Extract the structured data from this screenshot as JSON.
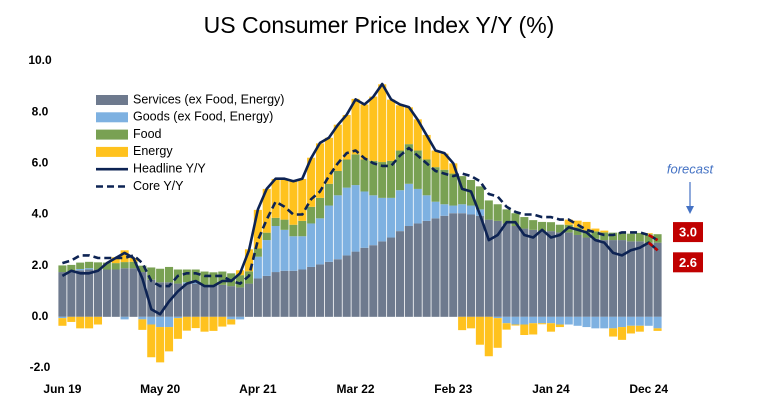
{
  "chart_data": {
    "type": "bar",
    "stacked": true,
    "title": "US Consumer Price Index Y/Y (%)",
    "annotation": "forecast",
    "categories": [
      "Jun 19",
      null,
      null,
      null,
      null,
      null,
      null,
      null,
      null,
      null,
      null,
      "May 20",
      null,
      null,
      null,
      null,
      null,
      null,
      null,
      null,
      null,
      null,
      "Apr 21",
      null,
      null,
      null,
      null,
      null,
      null,
      null,
      null,
      null,
      null,
      "Mar 22",
      null,
      null,
      null,
      null,
      null,
      null,
      null,
      null,
      null,
      null,
      "Feb 23",
      null,
      null,
      null,
      null,
      null,
      null,
      null,
      null,
      null,
      null,
      "Jan 24",
      null,
      null,
      null,
      null,
      null,
      null,
      null,
      null,
      null,
      null,
      "Dec 24",
      null
    ],
    "ylim": [
      -2,
      10
    ],
    "yticks": [
      {
        "value": -2,
        "label": "-2.0"
      },
      {
        "value": 0,
        "label": "0.0"
      },
      {
        "value": 2,
        "label": "2.0"
      },
      {
        "value": 4,
        "label": "4.0"
      },
      {
        "value": 6,
        "label": "6.0"
      },
      {
        "value": 8,
        "label": "8.0"
      },
      {
        "value": 10,
        "label": "10.0"
      }
    ],
    "grid": false,
    "legend": "top-left",
    "forecast_color": "#c00000",
    "series": [
      {
        "name": "Services (ex Food, Energy)",
        "color": "#6e7a8e",
        "values": [
          1.75,
          1.78,
          1.82,
          1.85,
          1.85,
          1.85,
          1.85,
          1.9,
          1.9,
          1.75,
          1.45,
          1.35,
          1.35,
          1.3,
          1.3,
          1.3,
          1.25,
          1.25,
          1.25,
          1.2,
          1.15,
          1.3,
          1.5,
          1.6,
          1.75,
          1.8,
          1.8,
          1.85,
          1.95,
          2.05,
          2.15,
          2.25,
          2.4,
          2.55,
          2.7,
          2.8,
          2.95,
          3.1,
          3.35,
          3.55,
          3.65,
          3.75,
          3.85,
          3.95,
          4.05,
          4.05,
          4.0,
          3.95,
          3.8,
          3.75,
          3.65,
          3.55,
          3.45,
          3.4,
          3.35,
          3.35,
          3.3,
          3.3,
          3.2,
          3.1,
          3.05,
          3.0,
          3.0,
          3.0,
          2.95,
          2.95,
          2.9,
          2.9
        ]
      },
      {
        "name": "Goods (ex Food, Energy)",
        "color": "#7eb1e1",
        "values": [
          -0.05,
          0.0,
          0.05,
          0.05,
          0.0,
          0.0,
          0.0,
          -0.1,
          0.0,
          -0.1,
          -0.3,
          -0.4,
          -0.4,
          -0.05,
          0.05,
          0.05,
          0.0,
          0.0,
          0.0,
          -0.1,
          -0.1,
          0.0,
          0.85,
          1.4,
          1.8,
          1.6,
          1.35,
          1.3,
          1.7,
          1.8,
          2.2,
          2.5,
          2.65,
          2.6,
          2.2,
          1.95,
          1.7,
          1.55,
          1.6,
          1.65,
          1.35,
          1.0,
          0.65,
          0.45,
          0.3,
          0.35,
          0.35,
          0.25,
          0.0,
          -0.05,
          -0.25,
          -0.3,
          -0.3,
          -0.25,
          -0.25,
          -0.25,
          -0.3,
          -0.3,
          -0.35,
          -0.4,
          -0.45,
          -0.45,
          -0.45,
          -0.4,
          -0.35,
          -0.35,
          -0.35,
          -0.45
        ]
      },
      {
        "name": "Food",
        "color": "#79a153",
        "values": [
          0.26,
          0.25,
          0.25,
          0.25,
          0.28,
          0.27,
          0.25,
          0.24,
          0.25,
          0.25,
          0.48,
          0.53,
          0.6,
          0.55,
          0.5,
          0.5,
          0.52,
          0.49,
          0.52,
          0.5,
          0.48,
          0.48,
          0.32,
          0.29,
          0.32,
          0.4,
          0.45,
          0.6,
          0.65,
          0.8,
          0.85,
          0.95,
          1.1,
          1.2,
          1.25,
          1.35,
          1.4,
          1.45,
          1.55,
          1.55,
          1.5,
          1.4,
          1.35,
          1.35,
          1.25,
          1.1,
          1.0,
          0.9,
          0.75,
          0.65,
          0.55,
          0.5,
          0.45,
          0.38,
          0.36,
          0.35,
          0.3,
          0.3,
          0.3,
          0.28,
          0.29,
          0.3,
          0.29,
          0.3,
          0.3,
          0.33,
          0.33,
          0.33
        ]
      },
      {
        "name": "Energy",
        "color": "#ffc21e",
        "values": [
          -0.3,
          -0.2,
          -0.45,
          -0.45,
          -0.3,
          0.0,
          0.23,
          0.46,
          0.15,
          -0.41,
          -1.28,
          -1.38,
          -0.95,
          -0.81,
          -0.54,
          -0.44,
          -0.58,
          -0.55,
          -0.38,
          -0.2,
          0.19,
          0.86,
          1.51,
          1.71,
          1.52,
          1.6,
          1.69,
          1.64,
          1.92,
          2.13,
          1.8,
          1.81,
          1.74,
          2.17,
          2.15,
          2.51,
          3.04,
          2.39,
          1.77,
          1.44,
          1.22,
          0.96,
          0.65,
          0.63,
          0.4,
          -0.52,
          -0.45,
          -1.09,
          -1.54,
          -1.16,
          -0.25,
          -0.04,
          -0.41,
          -0.44,
          -0.04,
          -0.33,
          -0.1,
          0.2,
          0.26,
          0.33,
          0.11,
          0.07,
          -0.32,
          -0.5,
          -0.3,
          -0.23,
          0.04,
          -0.1
        ]
      },
      {
        "name": "Headline Y/Y",
        "type": "line",
        "color": "#0d2353",
        "dashed": false,
        "values": [
          1.6,
          1.8,
          1.7,
          1.7,
          1.8,
          2.1,
          2.3,
          2.5,
          2.3,
          1.5,
          0.3,
          0.1,
          0.6,
          1.0,
          1.3,
          1.4,
          1.2,
          1.2,
          1.4,
          1.4,
          1.7,
          2.6,
          4.2,
          5.0,
          5.4,
          5.4,
          5.3,
          5.4,
          6.2,
          6.8,
          7.0,
          7.5,
          7.9,
          8.5,
          8.3,
          8.6,
          9.1,
          8.5,
          8.3,
          8.2,
          7.7,
          7.1,
          6.5,
          6.4,
          6.0,
          5.0,
          4.9,
          4.0,
          3.0,
          3.2,
          3.7,
          3.7,
          3.2,
          3.1,
          3.4,
          3.1,
          3.2,
          3.5,
          3.4,
          3.3,
          3.0,
          2.9,
          2.5,
          2.4,
          2.6,
          2.7,
          2.9,
          2.6
        ],
        "value_labels": [
          null,
          null,
          null,
          null,
          null,
          null,
          null,
          null,
          null,
          null,
          null,
          null,
          null,
          null,
          null,
          null,
          null,
          null,
          null,
          null,
          null,
          null,
          null,
          null,
          null,
          null,
          null,
          null,
          null,
          null,
          null,
          null,
          null,
          null,
          null,
          null,
          null,
          null,
          null,
          null,
          null,
          null,
          null,
          null,
          null,
          null,
          null,
          null,
          null,
          null,
          null,
          null,
          null,
          null,
          null,
          null,
          null,
          null,
          null,
          null,
          null,
          null,
          null,
          null,
          null,
          null,
          null,
          "2.6"
        ]
      },
      {
        "name": "Core Y/Y",
        "type": "line",
        "color": "#0d2353",
        "dashed": true,
        "values": [
          2.1,
          2.2,
          2.4,
          2.4,
          2.3,
          2.3,
          2.3,
          2.3,
          2.4,
          2.1,
          1.4,
          1.2,
          1.2,
          1.6,
          1.7,
          1.7,
          1.6,
          1.6,
          1.6,
          1.4,
          1.3,
          1.6,
          3.0,
          3.8,
          4.5,
          4.3,
          4.0,
          4.0,
          4.6,
          4.9,
          5.5,
          6.0,
          6.4,
          6.5,
          6.2,
          6.0,
          5.9,
          5.9,
          6.3,
          6.6,
          6.3,
          6.0,
          5.7,
          5.6,
          5.5,
          5.6,
          5.5,
          5.3,
          4.8,
          4.7,
          4.3,
          4.1,
          4.0,
          4.0,
          3.9,
          3.9,
          3.8,
          3.8,
          3.6,
          3.4,
          3.3,
          3.2,
          3.2,
          3.3,
          3.3,
          3.3,
          3.2,
          3.0
        ],
        "value_labels": [
          null,
          null,
          null,
          null,
          null,
          null,
          null,
          null,
          null,
          null,
          null,
          null,
          null,
          null,
          null,
          null,
          null,
          null,
          null,
          null,
          null,
          null,
          null,
          null,
          null,
          null,
          null,
          null,
          null,
          null,
          null,
          null,
          null,
          null,
          null,
          null,
          null,
          null,
          null,
          null,
          null,
          null,
          null,
          null,
          null,
          null,
          null,
          null,
          null,
          null,
          null,
          null,
          null,
          null,
          null,
          null,
          null,
          null,
          null,
          null,
          null,
          null,
          null,
          null,
          null,
          null,
          null,
          "3.0"
        ]
      }
    ]
  }
}
